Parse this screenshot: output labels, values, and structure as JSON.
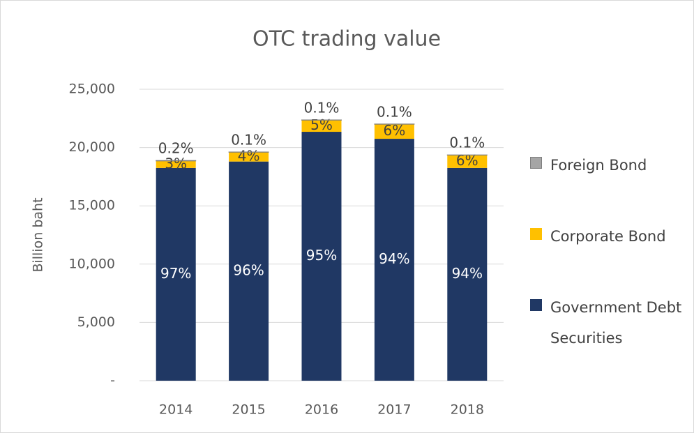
{
  "chart_data": {
    "type": "stacked_bar",
    "title": "OTC trading value",
    "y_label": "Billion baht",
    "categories": [
      "2014",
      "2015",
      "2016",
      "2017",
      "2018"
    ],
    "series": [
      {
        "name": "Government Debt Securities",
        "color": "#203864",
        "values": [
          18250,
          18800,
          21350,
          20750,
          18250
        ],
        "percent_labels": [
          "97%",
          "96%",
          "95%",
          "94%",
          "94%"
        ]
      },
      {
        "name": "Corporate Bond",
        "color": "#ffc000",
        "values": [
          600,
          800,
          1000,
          1250,
          1100
        ],
        "percent_labels": [
          "3%",
          "4%",
          "5%",
          "6%",
          "6%"
        ]
      },
      {
        "name": "Foreign Bond",
        "color": "#a5a5a5",
        "values": [
          40,
          20,
          20,
          20,
          20
        ],
        "percent_labels": [
          "0.2%",
          "0.1%",
          "0.1%",
          "0.1%",
          "0.1%"
        ]
      }
    ],
    "ylim": [
      0,
      25000
    ],
    "yticks": [
      {
        "value": 0,
        "label": "-"
      },
      {
        "value": 5000,
        "label": "5,000"
      },
      {
        "value": 10000,
        "label": "10,000"
      },
      {
        "value": 15000,
        "label": "15,000"
      },
      {
        "value": 20000,
        "label": "20,000"
      },
      {
        "value": 25000,
        "label": "25,000"
      }
    ],
    "grid": true,
    "legend": "right"
  }
}
